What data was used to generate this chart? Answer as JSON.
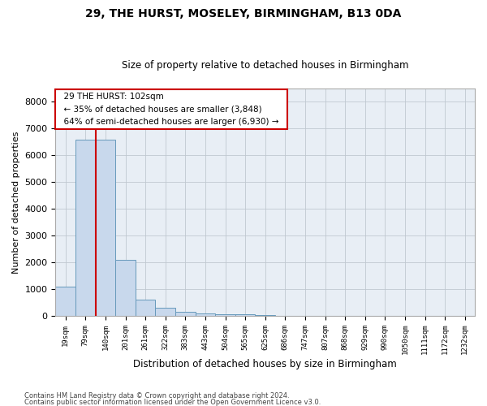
{
  "title": "29, THE HURST, MOSELEY, BIRMINGHAM, B13 0DA",
  "subtitle": "Size of property relative to detached houses in Birmingham",
  "xlabel": "Distribution of detached houses by size in Birmingham",
  "ylabel": "Number of detached properties",
  "footer1": "Contains HM Land Registry data © Crown copyright and database right 2024.",
  "footer2": "Contains public sector information licensed under the Open Government Licence v3.0.",
  "annotation_line1": "29 THE HURST: 102sqm",
  "annotation_line2": "← 35% of detached houses are smaller (3,848)",
  "annotation_line3": "64% of semi-detached houses are larger (6,930) →",
  "bar_color": "#c8d8ec",
  "bar_edge_color": "#6699bb",
  "red_line_color": "#cc0000",
  "categories": [
    "19sqm",
    "79sqm",
    "140sqm",
    "201sqm",
    "261sqm",
    "322sqm",
    "383sqm",
    "443sqm",
    "504sqm",
    "565sqm",
    "625sqm",
    "686sqm",
    "747sqm",
    "807sqm",
    "868sqm",
    "929sqm",
    "990sqm",
    "1050sqm",
    "1111sqm",
    "1172sqm",
    "1232sqm"
  ],
  "values": [
    1100,
    6600,
    6600,
    2100,
    600,
    300,
    150,
    100,
    60,
    50,
    30,
    0,
    0,
    0,
    0,
    0,
    0,
    0,
    0,
    0,
    0
  ],
  "ylim": [
    0,
    8500
  ],
  "yticks": [
    0,
    1000,
    2000,
    3000,
    4000,
    5000,
    6000,
    7000,
    8000
  ],
  "red_line_x": 1.5,
  "bg_color": "#ffffff",
  "axes_bg_color": "#e8eef5",
  "grid_color": "#c0c8d0"
}
